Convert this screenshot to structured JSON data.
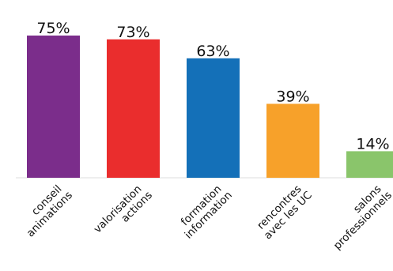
{
  "chart_data": {
    "type": "bar",
    "categories": [
      [
        "conseil",
        "animations"
      ],
      [
        "valorisation",
        "actions"
      ],
      [
        "formation",
        "information"
      ],
      [
        "rencontres",
        "avec les UC"
      ],
      [
        "salons",
        "professionnels"
      ]
    ],
    "values": [
      75,
      73,
      63,
      39,
      14
    ],
    "value_labels": [
      "75%",
      "73%",
      "63%",
      "39%",
      "14%"
    ],
    "colors": [
      "#7b2d8b",
      "#ea2d2d",
      "#1470b8",
      "#f7a12a",
      "#8ac56b"
    ],
    "ylim": [
      0,
      75
    ],
    "grid": false,
    "legend": "none"
  }
}
